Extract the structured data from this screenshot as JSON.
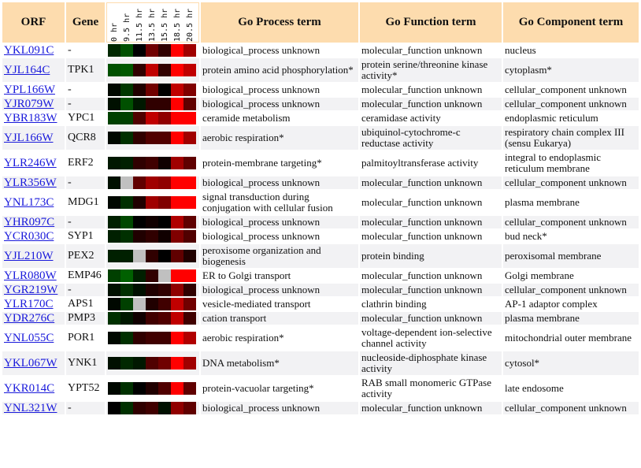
{
  "headers": {
    "orf": "ORF",
    "gene": "Gene",
    "process": "Go Process term",
    "function": "Go Function term",
    "component": "Go Component term"
  },
  "timepoints": [
    "0 hr",
    "9.5 hr",
    "11.5 hr",
    "13.5 hr",
    "15.5 hr",
    "18.5 hr",
    "20.5 hr"
  ],
  "rows": [
    {
      "orf": "YKL091C",
      "gene": "-",
      "process": "biological_process unknown",
      "function": "molecular_function unknown",
      "component": "nucleus",
      "colors": [
        "#002800",
        "#005000",
        "#000000",
        "#700000",
        "#300000",
        "#ff0000",
        "#a00000"
      ]
    },
    {
      "orf": "YJL164C",
      "gene": "TPK1",
      "process": "protein amino acid phosphorylation*",
      "function": "protein serine/threonine kinase activity*",
      "component": "cytoplasm*",
      "colors": [
        "#005000",
        "#005800",
        "#300000",
        "#c00000",
        "#300000",
        "#ff0000",
        "#c00000"
      ]
    },
    {
      "orf": "YPL166W",
      "gene": "-",
      "process": "biological_process unknown",
      "function": "molecular_function unknown",
      "component": "cellular_component unknown",
      "colors": [
        "#000800",
        "#003800",
        "#200000",
        "#700000",
        "#000000",
        "#c00000",
        "#800000"
      ]
    },
    {
      "orf": "YJR079W",
      "gene": "-",
      "process": "biological_process unknown",
      "function": "molecular_function unknown",
      "component": "cellular_component unknown",
      "colors": [
        "#001000",
        "#005000",
        "#001800",
        "#300000",
        "#300000",
        "#ff0000",
        "#600000"
      ]
    },
    {
      "orf": "YBR183W",
      "gene": "YPC1",
      "process": "ceramide metabolism",
      "function": "ceramidase activity",
      "component": "endoplasmic reticulum",
      "colors": [
        "#004000",
        "#004000",
        "#500000",
        "#c00000",
        "#900000",
        "#ff0000",
        "#ff0000"
      ]
    },
    {
      "orf": "YJL166W",
      "gene": "QCR8",
      "process": "aerobic respiration*",
      "function": "ubiquinol-cytochrome-c reductase activity",
      "component": "respiratory chain complex III (sensu Eukarya)",
      "colors": [
        "#000800",
        "#003000",
        "#300000",
        "#500000",
        "#500000",
        "#ff0000",
        "#a00000"
      ]
    },
    {
      "orf": "YLR246W",
      "gene": "ERF2",
      "process": "protein-membrane targeting*",
      "function": "palmitoyltransferase activity",
      "component": "integral to endoplasmic reticulum membrane",
      "colors": [
        "#001800",
        "#002000",
        "#300000",
        "#400000",
        "#100000",
        "#a00000",
        "#600000"
      ]
    },
    {
      "orf": "YLR356W",
      "gene": "-",
      "process": "biological_process unknown",
      "function": "molecular_function unknown",
      "component": "cellular_component unknown",
      "colors": [
        "#001000",
        "#c0c0c0",
        "#600000",
        "#a00000",
        "#900000",
        "#ff0000",
        "#ff0000"
      ]
    },
    {
      "orf": "YNL173C",
      "gene": "MDG1",
      "process": "signal transduction during conjugation with cellular fusion",
      "function": "molecular_function unknown",
      "component": "plasma membrane",
      "colors": [
        "#000800",
        "#003000",
        "#200000",
        "#a00000",
        "#800000",
        "#ff0000",
        "#ff0000"
      ]
    },
    {
      "orf": "YHR097C",
      "gene": "-",
      "process": "biological_process unknown",
      "function": "molecular_function unknown",
      "component": "cellular_component unknown",
      "colors": [
        "#002000",
        "#004800",
        "#000000",
        "#100000",
        "#000000",
        "#b00000",
        "#600000"
      ]
    },
    {
      "orf": "YCR030C",
      "gene": "SYP1",
      "process": "biological_process unknown",
      "function": "molecular_function unknown",
      "component": "bud neck*",
      "colors": [
        "#002000",
        "#003000",
        "#200000",
        "#300000",
        "#100000",
        "#800000",
        "#500000"
      ]
    },
    {
      "orf": "YJL210W",
      "gene": "PEX2",
      "process": "peroxisome organization and biogenesis",
      "function": "protein binding",
      "component": "peroxisomal membrane",
      "colors": [
        "#002000",
        "#002000",
        "#c0c0c0",
        "#300000",
        "#000000",
        "#600000",
        "#200000"
      ]
    },
    {
      "orf": "YLR080W",
      "gene": "EMP46",
      "process": "ER to Golgi transport",
      "function": "molecular_function unknown",
      "component": "Golgi membrane",
      "colors": [
        "#004000",
        "#006000",
        "#002000",
        "#300000",
        "#c0c0c0",
        "#ff0000",
        "#ff0000"
      ]
    },
    {
      "orf": "YGR219W",
      "gene": "-",
      "process": "biological_process unknown",
      "function": "molecular_function unknown",
      "component": "cellular_component unknown",
      "colors": [
        "#001000",
        "#003000",
        "#001000",
        "#200000",
        "#300000",
        "#900000",
        "#300000"
      ]
    },
    {
      "orf": "YLR170C",
      "gene": "APS1",
      "process": "vesicle-mediated transport",
      "function": "clathrin binding",
      "component": "AP-1 adaptor complex",
      "colors": [
        "#000800",
        "#004000",
        "#c0c0c0",
        "#200000",
        "#400000",
        "#c00000",
        "#700000"
      ]
    },
    {
      "orf": "YDR276C",
      "gene": "PMP3",
      "process": "cation transport",
      "function": "molecular_function unknown",
      "component": "plasma membrane",
      "colors": [
        "#003000",
        "#001800",
        "#100000",
        "#400000",
        "#500000",
        "#c00000",
        "#400000"
      ]
    },
    {
      "orf": "YNL055C",
      "gene": "POR1",
      "process": "aerobic respiration*",
      "function": "voltage-dependent ion-selective channel activity",
      "component": "mitochondrial outer membrane",
      "colors": [
        "#000800",
        "#003000",
        "#300000",
        "#400000",
        "#400000",
        "#ff0000",
        "#b00000"
      ]
    },
    {
      "orf": "YKL067W",
      "gene": "YNK1",
      "process": "DNA metabolism*",
      "function": "nucleoside-diphosphate kinase activity",
      "component": "cytosol*",
      "colors": [
        "#001000",
        "#002800",
        "#001800",
        "#500000",
        "#700000",
        "#ff0000",
        "#a00000"
      ]
    },
    {
      "orf": "YKR014C",
      "gene": "YPT52",
      "process": "protein-vacuolar targeting*",
      "function": "RAB small monomeric GTPase activity",
      "component": "late endosome",
      "colors": [
        "#000800",
        "#003000",
        "#000000",
        "#200000",
        "#500000",
        "#ff0000",
        "#600000"
      ]
    },
    {
      "orf": "YNL321W",
      "gene": "-",
      "process": "biological_process unknown",
      "function": "molecular_function unknown",
      "component": "cellular_component unknown",
      "colors": [
        "#000000",
        "#003000",
        "#300000",
        "#400000",
        "#001000",
        "#900000",
        "#600000"
      ]
    }
  ]
}
